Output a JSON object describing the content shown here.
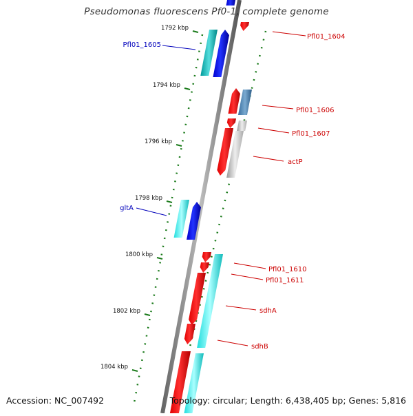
{
  "title": "Pseudomonas fluorescens Pf0-1, complete genome",
  "footer": {
    "accession": "Accession: NC_007492",
    "info": "Topology: circular; Length: 6,438,405 bp; Genes: 5,816"
  },
  "colors": {
    "forward_label": "#0000bb",
    "reverse_label": "#cc0000",
    "backbone": "#888888",
    "tick": "#1a7a1a"
  },
  "scale": {
    "ticks": [
      "1792 kbp",
      "1794 kbp",
      "1796 kbp",
      "1798 kbp",
      "1800 kbp",
      "1802 kbp",
      "1804 kbp"
    ]
  },
  "genes": [
    {
      "label": "Pfl01_1604",
      "strand": "reverse"
    },
    {
      "label": "Pfl01_1605",
      "strand": "forward"
    },
    {
      "label": "Pfl01_1606",
      "strand": "reverse"
    },
    {
      "label": "Pfl01_1607",
      "strand": "reverse"
    },
    {
      "label": "actP",
      "strand": "reverse"
    },
    {
      "label": "gltA",
      "strand": "forward"
    },
    {
      "label": "Pfl01_1610",
      "strand": "reverse"
    },
    {
      "label": "Pfl01_1611",
      "strand": "reverse"
    },
    {
      "label": "sdhA",
      "strand": "reverse"
    },
    {
      "label": "sdhB",
      "strand": "reverse"
    }
  ]
}
